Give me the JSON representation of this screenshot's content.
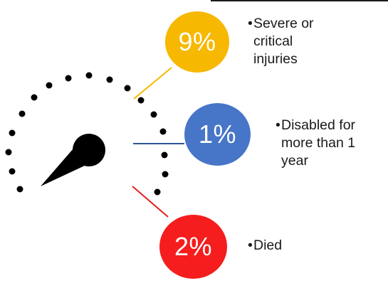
{
  "colors": {
    "severe": "#f6b800",
    "disabled": "#4775c8",
    "died": "#f51d1d",
    "dial": "#000000",
    "text": "#1a1a1a"
  },
  "stats": [
    {
      "value": "9%",
      "label": "Severe or\ncritical\ninjuries",
      "color": "#f6b800"
    },
    {
      "value": "1%",
      "label": "Disabled for\nmore than 1\nyear",
      "color": "#4775c8"
    },
    {
      "value": "2%",
      "label": "Died",
      "color": "#f51d1d"
    }
  ],
  "bullet": "•",
  "icon": "speedometer-gauge-icon"
}
